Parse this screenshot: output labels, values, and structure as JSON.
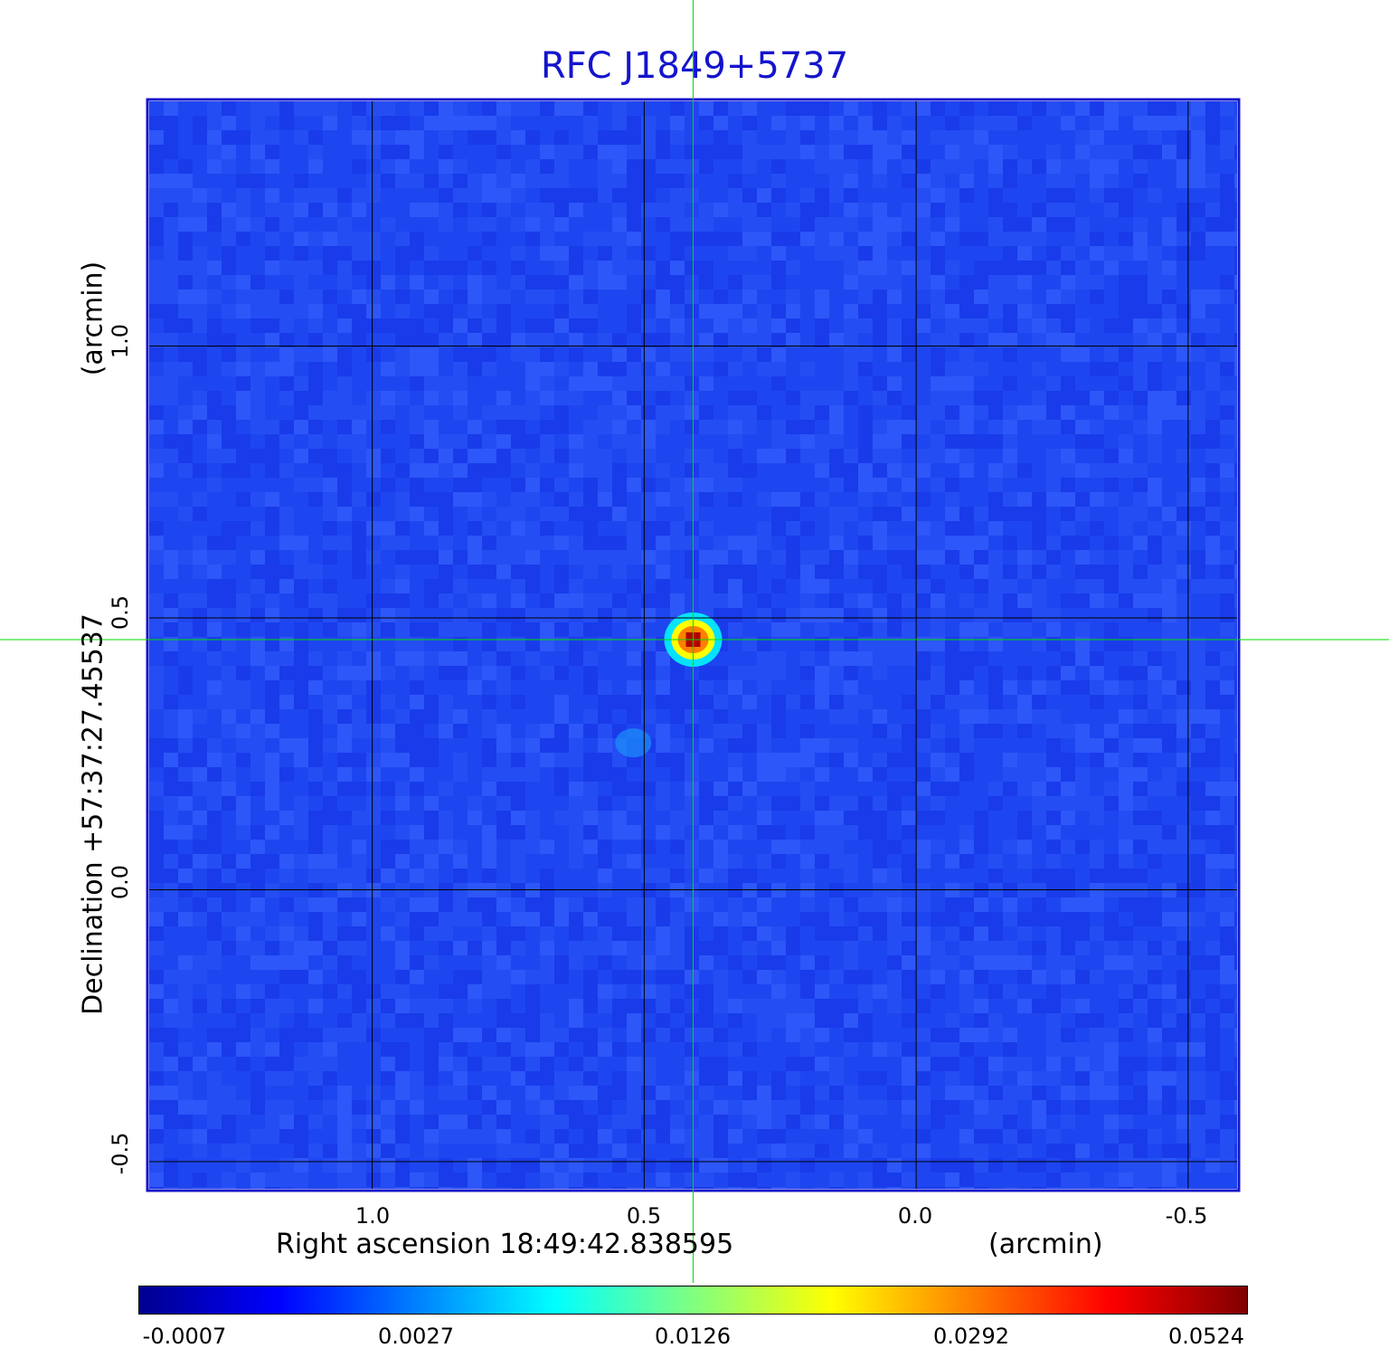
{
  "chart_data": {
    "type": "heatmap",
    "title": "RFC J1849+5737",
    "xlabel": "Right ascension  18:49:42.838595",
    "xunit": "(arcmin)",
    "ylabel": "Declination  +57:37:27.45537",
    "yunit": "(arcmin)",
    "xlim": [
      1.41,
      -0.59
    ],
    "ylim": [
      -0.55,
      1.45
    ],
    "xticks": [
      1.0,
      0.5,
      0.0,
      -0.5
    ],
    "yticks": [
      -0.5,
      0.0,
      0.5,
      1.0
    ],
    "xtick_labels": [
      "1.0",
      "0.5",
      "0.0",
      "-0.5"
    ],
    "ytick_labels": [
      "-0.5",
      "0.0",
      "0.5",
      "1.0"
    ],
    "grid": true,
    "colormap": "jet",
    "colorbar_ticks": [
      "-0.0007",
      "0.0027",
      "0.0126",
      "0.0292",
      "0.0524"
    ],
    "peak": {
      "x": 0.41,
      "y": 0.46,
      "value": 0.0524
    },
    "secondary_feature": {
      "x": 0.52,
      "y": 0.27
    },
    "crosshair": {
      "x": 0.41,
      "y": 0.46
    },
    "colors": {
      "title": "#1414cc",
      "frame": "#1414cc",
      "background_map": "#1e46f0",
      "crosshair": "#00dd00",
      "grid": "#000000"
    }
  }
}
